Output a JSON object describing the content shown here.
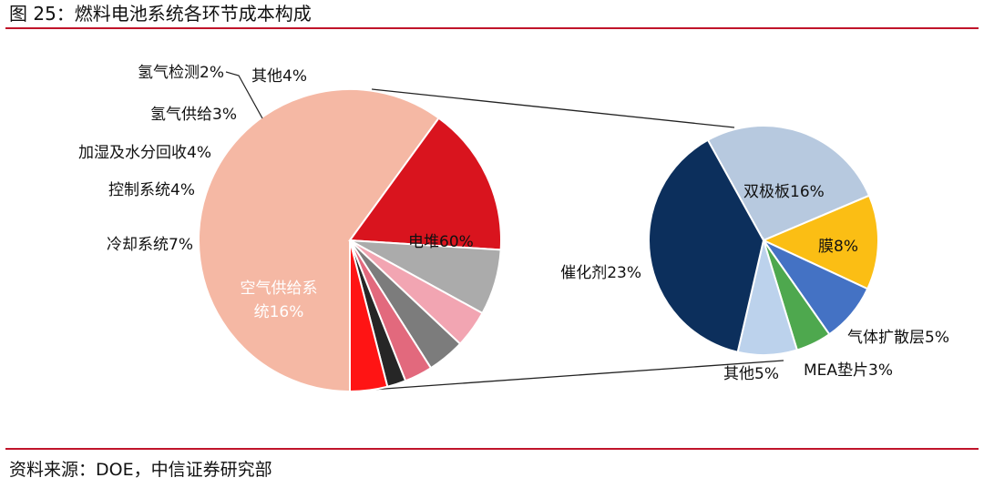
{
  "figure": {
    "title": "图 25：燃料电池系统各环节成本构成",
    "source": "资料来源：DOE，中信证券研究部"
  },
  "chart_data": [
    {
      "type": "pie",
      "slices": [
        {
          "label": "电堆60%",
          "value": 60,
          "color": "#f5b8a4"
        },
        {
          "label": "空气供给系统16%",
          "value": 16,
          "color": "#d9141e"
        },
        {
          "label": "冷却系统7%",
          "value": 7,
          "color": "#ababab"
        },
        {
          "label": "控制系统4%",
          "value": 4,
          "color": "#f2a5b2"
        },
        {
          "label": "加湿及水分回收4%",
          "value": 4,
          "color": "#7c7c7c"
        },
        {
          "label": "氢气供给3%",
          "value": 3,
          "color": "#e2697d"
        },
        {
          "label": "氢气检测2%",
          "value": 2,
          "color": "#262626"
        },
        {
          "label": "其他4%",
          "value": 4,
          "color": "#ff1414"
        }
      ]
    },
    {
      "type": "pie",
      "slices": [
        {
          "label": "双极板16%",
          "value": 16,
          "color": "#b7c9df"
        },
        {
          "label": "膜8%",
          "value": 8,
          "color": "#fbbe14"
        },
        {
          "label": "气体扩散层5%",
          "value": 5,
          "color": "#4472c4"
        },
        {
          "label": "MEA垫片3%",
          "value": 3,
          "color": "#4ea84e"
        },
        {
          "label": "其他5%",
          "value": 5,
          "color": "#bcd2ec"
        },
        {
          "label": "催化剂23%",
          "value": 23,
          "color": "#0c2f5c"
        }
      ]
    }
  ]
}
